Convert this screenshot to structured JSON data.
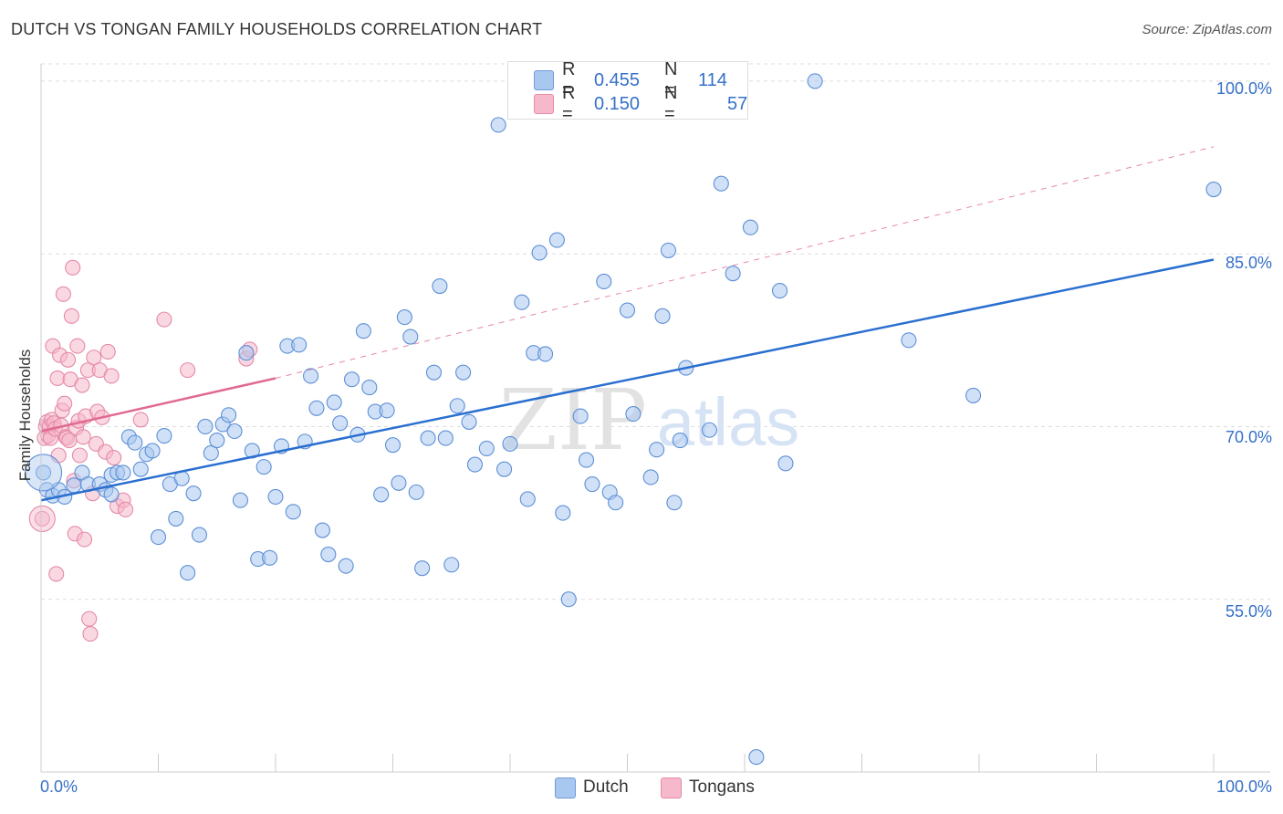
{
  "header": {
    "title": "DUTCH VS TONGAN FAMILY HOUSEHOLDS CORRELATION CHART",
    "source": "Source: ZipAtlas.com"
  },
  "watermark": {
    "zip": "ZIP",
    "atlas": "atlas"
  },
  "legend": {
    "rows": [
      {
        "r_label": "R =",
        "r_value": "0.455",
        "n_label": "N =",
        "n_value": "114",
        "color": "#a9c8f0"
      },
      {
        "r_label": "R =",
        "r_value": "0.150",
        "n_label": "N =",
        "n_value": "57",
        "color": "#f6b8cb"
      }
    ]
  },
  "bottom_legend": {
    "dutch": "Dutch",
    "tongans": "Tongans"
  },
  "axes": {
    "ylabel": "Family Households",
    "y_ticks": [
      "100.0%",
      "85.0%",
      "70.0%",
      "55.0%"
    ],
    "x_min_label": "0.0%",
    "x_max_label": "100.0%"
  },
  "colors": {
    "dutch_fill": "#a9c8f0",
    "dutch_stroke": "#5d8fd6",
    "dutch_line": "#2a6fd0",
    "tongan_fill": "#f6b8cb",
    "tongan_stroke": "#e58aa7",
    "tongan_line": "#e06a92",
    "grid": "#dddddd"
  },
  "chart_data": {
    "type": "scatter",
    "xlim": [
      0,
      100
    ],
    "ylim": [
      40,
      101.5
    ],
    "y_gridlines": [
      55,
      70,
      85,
      100
    ],
    "legend_position": "top-center",
    "series": [
      {
        "name": "Dutch",
        "points": [
          [
            0.2,
            66.0
          ],
          [
            0.5,
            64.5
          ],
          [
            1.0,
            64.0
          ],
          [
            1.5,
            64.5
          ],
          [
            2.0,
            63.9
          ],
          [
            2.8,
            64.9
          ],
          [
            3.5,
            66.0
          ],
          [
            4.0,
            65.0
          ],
          [
            5.0,
            65.0
          ],
          [
            5.5,
            64.5
          ],
          [
            6.0,
            64.1
          ],
          [
            6.0,
            65.8
          ],
          [
            6.5,
            66.0
          ],
          [
            7.0,
            66.0
          ],
          [
            7.5,
            69.1
          ],
          [
            8.0,
            68.6
          ],
          [
            8.5,
            66.3
          ],
          [
            9.0,
            67.6
          ],
          [
            9.5,
            67.9
          ],
          [
            10.0,
            60.4
          ],
          [
            10.5,
            69.2
          ],
          [
            11.0,
            65.0
          ],
          [
            11.5,
            62.0
          ],
          [
            12.0,
            65.5
          ],
          [
            12.5,
            57.3
          ],
          [
            13.0,
            64.2
          ],
          [
            13.5,
            60.6
          ],
          [
            14.0,
            70.0
          ],
          [
            14.5,
            67.7
          ],
          [
            15.0,
            68.8
          ],
          [
            15.5,
            70.2
          ],
          [
            16.0,
            71.0
          ],
          [
            16.5,
            69.6
          ],
          [
            17.0,
            63.6
          ],
          [
            17.5,
            76.4
          ],
          [
            18.0,
            67.9
          ],
          [
            18.5,
            58.5
          ],
          [
            19.0,
            66.5
          ],
          [
            19.5,
            58.6
          ],
          [
            20.0,
            63.9
          ],
          [
            20.5,
            68.3
          ],
          [
            21.0,
            77.0
          ],
          [
            21.5,
            62.6
          ],
          [
            22.0,
            77.1
          ],
          [
            22.5,
            68.7
          ],
          [
            23.0,
            74.4
          ],
          [
            23.5,
            71.6
          ],
          [
            24.0,
            61.0
          ],
          [
            24.5,
            58.9
          ],
          [
            25.0,
            72.1
          ],
          [
            25.5,
            70.3
          ],
          [
            26.0,
            57.9
          ],
          [
            26.5,
            74.1
          ],
          [
            27.0,
            69.3
          ],
          [
            27.5,
            78.3
          ],
          [
            28.0,
            73.4
          ],
          [
            28.5,
            71.3
          ],
          [
            29.0,
            64.1
          ],
          [
            29.5,
            71.4
          ],
          [
            30.0,
            68.4
          ],
          [
            30.5,
            65.1
          ],
          [
            31.0,
            79.5
          ],
          [
            31.5,
            77.8
          ],
          [
            32.0,
            64.3
          ],
          [
            32.5,
            57.7
          ],
          [
            33.0,
            69.0
          ],
          [
            33.5,
            74.7
          ],
          [
            34.0,
            82.2
          ],
          [
            34.5,
            69.0
          ],
          [
            35.0,
            58.0
          ],
          [
            35.5,
            71.8
          ],
          [
            36.0,
            74.7
          ],
          [
            36.5,
            70.4
          ],
          [
            37.0,
            66.7
          ],
          [
            38.0,
            68.1
          ],
          [
            39.0,
            96.2
          ],
          [
            39.5,
            66.3
          ],
          [
            40.0,
            68.5
          ],
          [
            41.0,
            80.8
          ],
          [
            41.5,
            63.7
          ],
          [
            42.0,
            76.4
          ],
          [
            42.5,
            85.1
          ],
          [
            43.0,
            76.3
          ],
          [
            44.0,
            86.2
          ],
          [
            44.5,
            62.5
          ],
          [
            45.0,
            55.0
          ],
          [
            46.0,
            70.9
          ],
          [
            46.5,
            67.1
          ],
          [
            47.0,
            65.0
          ],
          [
            48.0,
            82.6
          ],
          [
            48.5,
            64.3
          ],
          [
            49.0,
            63.4
          ],
          [
            50.0,
            80.1
          ],
          [
            50.5,
            71.1
          ],
          [
            52.0,
            65.6
          ],
          [
            52.5,
            68.0
          ],
          [
            53.0,
            79.6
          ],
          [
            53.5,
            85.3
          ],
          [
            54.0,
            63.4
          ],
          [
            54.5,
            68.8
          ],
          [
            55.0,
            75.1
          ],
          [
            57.0,
            69.7
          ],
          [
            58.0,
            91.1
          ],
          [
            59.0,
            83.3
          ],
          [
            60.5,
            87.3
          ],
          [
            61.0,
            41.3
          ],
          [
            63.0,
            81.8
          ],
          [
            63.5,
            66.8
          ],
          [
            66.0,
            100.0
          ],
          [
            74.0,
            77.5
          ],
          [
            79.5,
            72.7
          ],
          [
            100.0,
            90.6
          ]
        ],
        "trend": {
          "x": [
            0,
            100
          ],
          "y": [
            63.6,
            84.5
          ]
        }
      },
      {
        "name": "Tongans",
        "points": [
          [
            0.1,
            62.0
          ],
          [
            0.3,
            69.0
          ],
          [
            0.4,
            70.0
          ],
          [
            0.5,
            70.4
          ],
          [
            0.6,
            69.2
          ],
          [
            0.7,
            70.0
          ],
          [
            0.8,
            69.0
          ],
          [
            0.9,
            70.6
          ],
          [
            1.0,
            77.0
          ],
          [
            1.1,
            70.3
          ],
          [
            1.2,
            69.8
          ],
          [
            1.3,
            57.2
          ],
          [
            1.4,
            74.2
          ],
          [
            1.5,
            67.5
          ],
          [
            1.6,
            76.2
          ],
          [
            1.7,
            70.1
          ],
          [
            1.8,
            71.4
          ],
          [
            1.9,
            81.5
          ],
          [
            2.0,
            72.0
          ],
          [
            2.1,
            69.1
          ],
          [
            2.2,
            69.0
          ],
          [
            2.3,
            75.8
          ],
          [
            2.4,
            68.8
          ],
          [
            2.5,
            74.1
          ],
          [
            2.6,
            79.6
          ],
          [
            2.7,
            83.8
          ],
          [
            2.8,
            65.3
          ],
          [
            2.9,
            60.7
          ],
          [
            3.0,
            69.9
          ],
          [
            3.1,
            77.0
          ],
          [
            3.2,
            70.5
          ],
          [
            3.3,
            67.5
          ],
          [
            3.5,
            73.6
          ],
          [
            3.6,
            69.1
          ],
          [
            3.7,
            60.2
          ],
          [
            3.8,
            70.9
          ],
          [
            4.0,
            74.9
          ],
          [
            4.1,
            53.3
          ],
          [
            4.2,
            52.0
          ],
          [
            4.4,
            64.2
          ],
          [
            4.5,
            76.0
          ],
          [
            4.7,
            68.5
          ],
          [
            4.8,
            71.3
          ],
          [
            5.0,
            74.9
          ],
          [
            5.2,
            70.8
          ],
          [
            5.5,
            67.8
          ],
          [
            5.7,
            76.5
          ],
          [
            6.0,
            74.4
          ],
          [
            6.2,
            67.3
          ],
          [
            6.5,
            63.1
          ],
          [
            7.0,
            63.6
          ],
          [
            7.2,
            62.8
          ],
          [
            8.5,
            70.6
          ],
          [
            10.5,
            79.3
          ],
          [
            12.5,
            74.9
          ],
          [
            17.5,
            75.9
          ],
          [
            17.8,
            76.7
          ]
        ],
        "trend": {
          "x": [
            0,
            20
          ],
          "y": [
            69.6,
            74.2
          ]
        },
        "trend_dashed": {
          "x": [
            20,
            100
          ],
          "y": [
            74.2,
            94.3
          ]
        }
      }
    ]
  }
}
